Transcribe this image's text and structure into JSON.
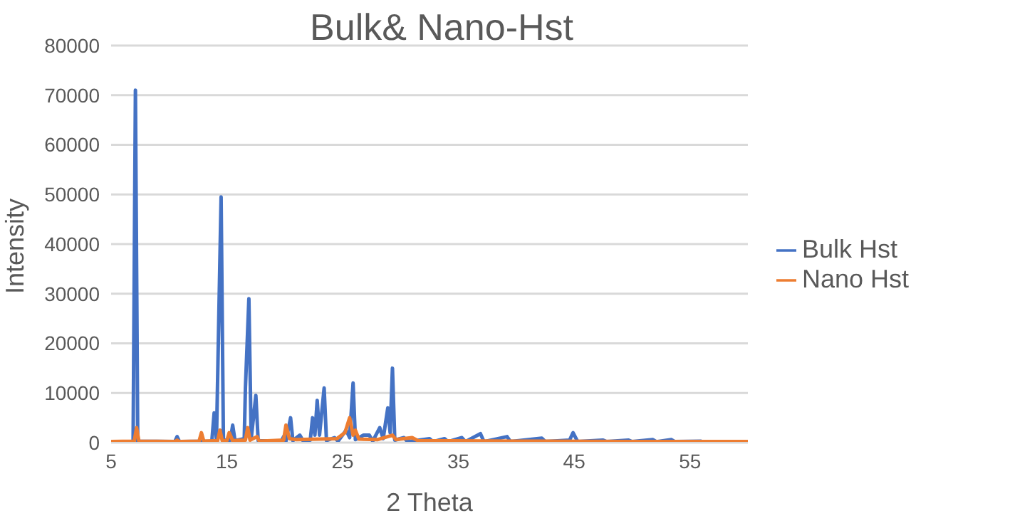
{
  "chart_data": {
    "type": "line",
    "title": "Bulk& Nano-Hst",
    "xlabel": "2 Theta",
    "ylabel": "Intensity",
    "xlim": [
      5,
      60
    ],
    "xticks": [
      5,
      15,
      25,
      35,
      45,
      55
    ],
    "ylim": [
      0,
      80000
    ],
    "yticks": [
      0,
      10000,
      20000,
      30000,
      40000,
      50000,
      60000,
      70000,
      80000
    ],
    "grid": "y",
    "legend": "right",
    "marker": "none",
    "line_style": "solid",
    "series": [
      {
        "name": "Bulk Hst",
        "color": "#4472c4",
        "x": [
          5,
          6.9,
          7.1,
          7.3,
          10.5,
          10.7,
          10.9,
          13.7,
          13.9,
          14.1,
          14.5,
          14.7,
          15.3,
          15.5,
          15.7,
          16.5,
          16.6,
          16.9,
          17.1,
          17.5,
          17.7,
          19.7,
          19.9,
          20.1,
          20.5,
          20.7,
          21.3,
          21.6,
          22.2,
          22.4,
          22.6,
          22.8,
          23.0,
          23.4,
          23.6,
          24.3,
          24.6,
          25.3,
          25.6,
          25.9,
          26.1,
          26.8,
          27.3,
          27.6,
          28.2,
          28.5,
          28.9,
          29.1,
          29.3,
          29.5,
          30.3,
          30.6,
          32.5,
          32.8,
          33.8,
          34.1,
          35.3,
          35.6,
          36.9,
          37.2,
          39.2,
          39.5,
          42.2,
          42.5,
          44.6,
          44.9,
          45.3,
          47.5,
          47.8,
          49.7,
          50,
          51.8,
          52.1,
          53.4,
          53.7,
          56
        ],
        "values": [
          100,
          200,
          71000,
          300,
          200,
          1200,
          200,
          300,
          6000,
          500,
          49500,
          500,
          500,
          3500,
          400,
          800,
          11000,
          29000,
          800,
          9500,
          400,
          300,
          1200,
          300,
          5000,
          400,
          1500,
          300,
          500,
          5000,
          1500,
          8500,
          1500,
          11000,
          400,
          1000,
          300,
          2500,
          1000,
          12000,
          600,
          1500,
          1500,
          300,
          3000,
          800,
          7000,
          2000,
          15000,
          500,
          1000,
          200,
          800,
          200,
          800,
          200,
          1000,
          200,
          1800,
          200,
          1200,
          200,
          900,
          200,
          500,
          2000,
          200,
          500,
          200,
          500,
          200,
          600,
          200,
          600,
          200,
          300
        ]
      },
      {
        "name": "Nano Hst",
        "color": "#ed7d31",
        "x": [
          5,
          7.0,
          7.2,
          7.4,
          10.5,
          10.7,
          10.9,
          12.6,
          12.8,
          13.0,
          14.2,
          14.4,
          14.6,
          15.0,
          15.2,
          15.5,
          16.6,
          16.8,
          17.0,
          17.6,
          17.8,
          19.9,
          20.1,
          20.4,
          21,
          24.5,
          25.2,
          25.6,
          25.9,
          26.1,
          26.4,
          28,
          29.3,
          29.6,
          31,
          31.5,
          40,
          50,
          60
        ],
        "values": [
          200,
          300,
          3000,
          300,
          200,
          500,
          200,
          300,
          2000,
          300,
          400,
          2500,
          400,
          400,
          2000,
          400,
          500,
          3000,
          500,
          1200,
          300,
          500,
          3500,
          800,
          600,
          800,
          2000,
          5000,
          1500,
          2500,
          700,
          600,
          1500,
          600,
          1000,
          400,
          300,
          200,
          200
        ]
      }
    ]
  }
}
